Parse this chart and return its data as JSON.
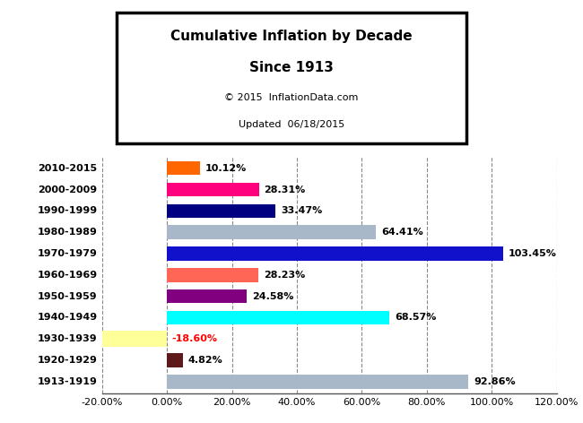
{
  "categories": [
    "2010-2015",
    "2000-2009",
    "1990-1999",
    "1980-1989",
    "1970-1979",
    "1960-1969",
    "1950-1959",
    "1940-1949",
    "1930-1939",
    "1920-1929",
    "1913-1919"
  ],
  "values": [
    10.12,
    28.31,
    33.47,
    64.41,
    103.45,
    28.23,
    24.58,
    68.57,
    -18.6,
    4.82,
    92.86
  ],
  "colors": [
    "#FF6600",
    "#FF007F",
    "#000080",
    "#A9B8C8",
    "#1111CC",
    "#FF6655",
    "#800080",
    "#00FFFF",
    "#FFFF99",
    "#5C1A1A",
    "#A9B8C8"
  ],
  "label_colors": [
    "#000000",
    "#000000",
    "#000000",
    "#000000",
    "#000000",
    "#000000",
    "#000000",
    "#000000",
    "#FF0000",
    "#000000",
    "#000000"
  ],
  "bg_1930": "#FFFF99",
  "title_line1": "Cumulative Inflation by Decade",
  "title_line2": "Since 1913",
  "subtitle1": "© 2015  InflationData.com",
  "subtitle2": "Updated  06/18/2015",
  "xlim": [
    -20,
    120
  ],
  "xticks": [
    -20,
    0,
    20,
    40,
    60,
    80,
    100,
    120
  ],
  "xtick_labels": [
    "-20.00%",
    "0.00%",
    "20.00%",
    "40.00%",
    "60.00%",
    "80.00%",
    "100.00%",
    "120.00%"
  ],
  "background_color": "#FFFFFF",
  "grid_color": "#888888",
  "bar_height": 0.65
}
